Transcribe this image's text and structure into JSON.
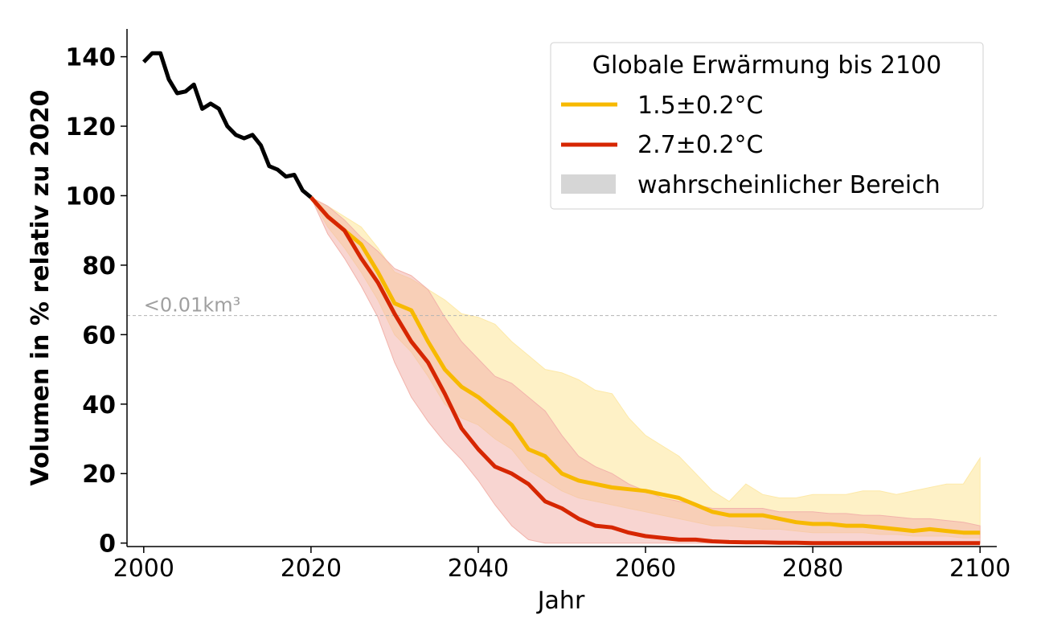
{
  "chart_data": {
    "type": "line",
    "xlabel": "Jahr",
    "ylabel": "Volumen in % relativ zu 2020",
    "xlim": [
      1998,
      2102
    ],
    "ylim": [
      -1,
      148
    ],
    "x_ticks": [
      2000,
      2020,
      2040,
      2060,
      2080,
      2100
    ],
    "y_ticks": [
      0,
      20,
      40,
      60,
      80,
      100,
      120,
      140
    ],
    "grid": false,
    "threshold": {
      "y": 65.5,
      "label": "<0.01km³",
      "color": "#b4b4b4"
    },
    "legend": {
      "title": "Globale Erwärmung bis 2100",
      "placement": "top-right",
      "entries": [
        "1.5±0.2°C",
        "2.7±0.2°C",
        "wahrscheinlicher Bereich"
      ],
      "band_color": "#d6d6d6"
    },
    "series": [
      {
        "color": "#000000",
        "x": [
          2000,
          2001,
          2002,
          2003,
          2004,
          2005,
          2006,
          2007,
          2008,
          2009,
          2010,
          2011,
          2012,
          2013,
          2014,
          2015,
          2016,
          2017,
          2018,
          2019,
          2020
        ],
        "values": [
          138.5,
          141,
          141,
          133.5,
          129.5,
          130,
          132,
          125,
          126.5,
          125,
          120,
          117.5,
          116.5,
          117.5,
          114.5,
          108.5,
          107.5,
          105.5,
          106,
          101.5,
          99.5
        ]
      },
      {
        "name": "1.5±0.2°C",
        "color": "#f7b900",
        "band_color": "#fde9a8",
        "x": [
          2020,
          2022,
          2024,
          2026,
          2028,
          2030,
          2032,
          2034,
          2036,
          2038,
          2040,
          2042,
          2044,
          2046,
          2048,
          2050,
          2052,
          2054,
          2056,
          2058,
          2060,
          2062,
          2064,
          2066,
          2068,
          2070,
          2072,
          2074,
          2076,
          2078,
          2080,
          2082,
          2084,
          2086,
          2088,
          2090,
          2092,
          2094,
          2096,
          2098,
          2100
        ],
        "values": [
          99.5,
          94,
          90,
          86,
          78,
          69,
          67,
          58,
          50,
          45,
          42,
          38,
          34,
          27,
          25,
          20,
          18,
          17,
          16,
          15.5,
          15,
          14,
          13,
          11,
          9,
          8,
          8,
          8,
          7,
          6,
          5.5,
          5.5,
          5,
          5,
          4.5,
          4,
          3.5,
          4,
          3.5,
          3,
          3
        ],
        "low": [
          99.5,
          91,
          85,
          78,
          70,
          60,
          55,
          48,
          40,
          36,
          34,
          30,
          27,
          21,
          18,
          15,
          13,
          12,
          11,
          10,
          9,
          8,
          7,
          6,
          5,
          5,
          4.5,
          4,
          4,
          3.5,
          3,
          3,
          3,
          3,
          2.5,
          2.5,
          2,
          2,
          2,
          1.5,
          1.5
        ],
        "high": [
          99.5,
          97,
          94,
          91,
          85,
          78,
          76,
          73,
          70,
          66,
          65,
          63,
          58,
          54,
          50,
          49,
          47,
          44,
          43,
          36,
          31,
          28,
          25,
          20,
          15,
          12,
          17,
          14,
          13,
          13,
          14,
          14,
          14,
          15,
          15,
          14,
          15,
          16,
          17,
          17,
          24.5
        ]
      },
      {
        "name": "2.7±0.2°C",
        "color": "#d62600",
        "band_color": "#f2b3ab",
        "x": [
          2020,
          2022,
          2024,
          2026,
          2028,
          2030,
          2032,
          2034,
          2036,
          2038,
          2040,
          2042,
          2044,
          2046,
          2048,
          2050,
          2052,
          2054,
          2056,
          2058,
          2060,
          2062,
          2064,
          2066,
          2068,
          2070,
          2072,
          2074,
          2076,
          2078,
          2080,
          2082,
          2084,
          2086,
          2088,
          2090,
          2092,
          2094,
          2096,
          2098,
          2100
        ],
        "values": [
          99.5,
          94,
          90,
          82,
          75,
          66,
          58,
          52,
          43,
          33,
          27,
          22,
          20,
          17,
          12,
          10,
          7,
          5,
          4.5,
          3,
          2,
          1.5,
          1,
          1,
          0.5,
          0.3,
          0.2,
          0.2,
          0.1,
          0.1,
          0,
          0,
          0,
          0,
          0,
          0,
          0,
          0,
          0,
          0,
          0
        ],
        "low": [
          99.5,
          89,
          82,
          74,
          65,
          52,
          42,
          35,
          29,
          24,
          18,
          11,
          5,
          1,
          0,
          0,
          0,
          0,
          0,
          0,
          0,
          0,
          0,
          0,
          0,
          0,
          0,
          0,
          0,
          0,
          0,
          0,
          0,
          0,
          0,
          0,
          0,
          0,
          0,
          0,
          0
        ],
        "high": [
          99.5,
          97,
          93,
          88,
          84,
          79,
          77,
          73,
          65,
          58,
          53,
          48,
          46,
          42,
          38,
          31,
          25,
          22,
          20,
          17,
          15,
          13,
          12,
          11,
          10,
          10,
          10,
          10,
          9,
          9,
          9,
          8.5,
          8.5,
          8,
          8,
          7.5,
          7,
          7,
          6.5,
          6,
          5
        ]
      }
    ]
  }
}
